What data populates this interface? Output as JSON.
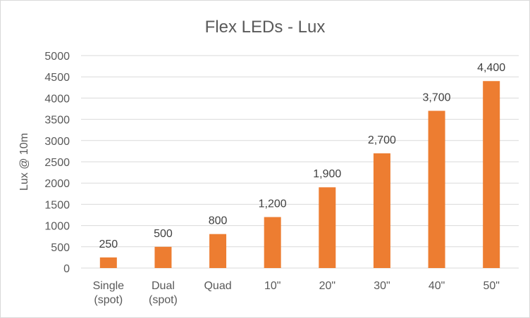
{
  "chart_data": {
    "type": "bar",
    "title": "Flex LEDs - Lux",
    "xlabel": "",
    "ylabel": "Lux @ 10m",
    "categories": [
      [
        "Single",
        "(spot)"
      ],
      [
        "Dual",
        "(spot)"
      ],
      [
        "Quad"
      ],
      [
        "10\""
      ],
      [
        "20\""
      ],
      [
        "30\""
      ],
      [
        "40\""
      ],
      [
        "50\""
      ]
    ],
    "values": [
      250,
      500,
      800,
      1200,
      1900,
      2700,
      3700,
      4400
    ],
    "data_labels": [
      "250",
      "500",
      "800",
      "1,200",
      "1,900",
      "2,700",
      "3,700",
      "4,400"
    ],
    "ylim": [
      0,
      5000
    ],
    "yticks": [
      "0",
      "500",
      "1000",
      "1500",
      "2000",
      "2500",
      "3000",
      "3500",
      "4000",
      "4500",
      "5000"
    ],
    "grid": true,
    "legend": "none",
    "colors": {
      "bar": "#ED7D31",
      "grid": "#D9D9D9",
      "text": "#595959",
      "data_label": "#404040"
    }
  }
}
